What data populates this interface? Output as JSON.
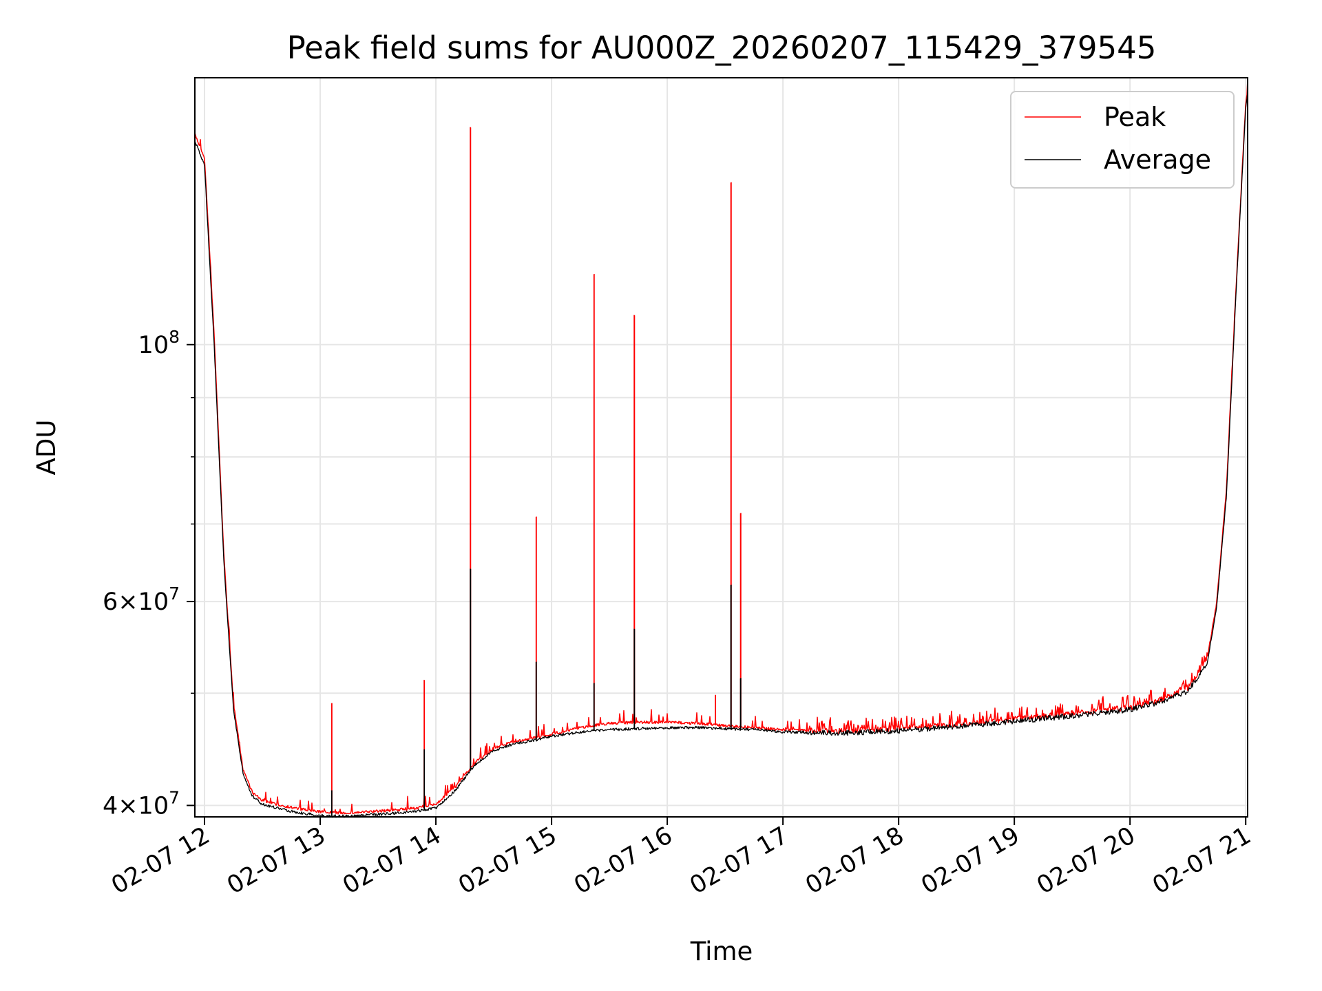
{
  "chart_data": {
    "type": "line",
    "title": "Peak field sums for AU000Z_20260207_115429_379545",
    "xlabel": "Time",
    "ylabel": "ADU",
    "x_axis": {
      "type": "time",
      "range": [
        "2026-02-07 11:55",
        "2026-02-07 21:01"
      ],
      "tick_values": [
        "2026-02-07 12:00",
        "2026-02-07 13:00",
        "2026-02-07 14:00",
        "2026-02-07 15:00",
        "2026-02-07 16:00",
        "2026-02-07 17:00",
        "2026-02-07 18:00",
        "2026-02-07 19:00",
        "2026-02-07 20:00",
        "2026-02-07 21:00"
      ],
      "tick_labels": [
        "02-07 12",
        "02-07 13",
        "02-07 14",
        "02-07 15",
        "02-07 16",
        "02-07 17",
        "02-07 18",
        "02-07 19",
        "02-07 20",
        "02-07 21"
      ]
    },
    "y_axis": {
      "scale": "log",
      "ylim": [
        39100000,
        170000000
      ],
      "major_ticks": [
        {
          "value": 40000000,
          "mantissa": "4",
          "exponent": "7"
        },
        {
          "value": 60000000,
          "mantissa": "6",
          "exponent": "7"
        },
        {
          "value": 100000000,
          "mantissa": "",
          "exponent": "8"
        }
      ],
      "minor_ticks": [
        50000000,
        70000000,
        80000000,
        90000000
      ]
    },
    "grid": true,
    "legend": {
      "placement": "top-right"
    },
    "series": [
      {
        "name": "Peak",
        "color": "#ff0000",
        "x": [
          "2026-02-07 11:55",
          "2026-02-07 12:00",
          "2026-02-07 12:05",
          "2026-02-07 12:10",
          "2026-02-07 12:15",
          "2026-02-07 12:20",
          "2026-02-07 12:25",
          "2026-02-07 12:30",
          "2026-02-07 12:40",
          "2026-02-07 12:50",
          "2026-02-07 13:00",
          "2026-02-07 13:10",
          "2026-02-07 13:20",
          "2026-02-07 13:30",
          "2026-02-07 13:40",
          "2026-02-07 13:50",
          "2026-02-07 14:00",
          "2026-02-07 14:10",
          "2026-02-07 14:20",
          "2026-02-07 14:30",
          "2026-02-07 14:40",
          "2026-02-07 14:50",
          "2026-02-07 15:00",
          "2026-02-07 15:15",
          "2026-02-07 15:30",
          "2026-02-07 15:45",
          "2026-02-07 16:00",
          "2026-02-07 16:15",
          "2026-02-07 16:30",
          "2026-02-07 16:45",
          "2026-02-07 17:00",
          "2026-02-07 17:30",
          "2026-02-07 18:00",
          "2026-02-07 18:30",
          "2026-02-07 19:00",
          "2026-02-07 19:30",
          "2026-02-07 20:00",
          "2026-02-07 20:15",
          "2026-02-07 20:30",
          "2026-02-07 20:40",
          "2026-02-07 20:45",
          "2026-02-07 20:50",
          "2026-02-07 20:55",
          "2026-02-07 21:00",
          "2026-02-07 21:01"
        ],
        "y": [
          152000000,
          145000000,
          102000000,
          66000000,
          49000000,
          43000000,
          41000000,
          40400000,
          40000000,
          39700000,
          39500000,
          39400000,
          39450000,
          39550000,
          39650000,
          39800000,
          40100000,
          41500000,
          43500000,
          44800000,
          45400000,
          45700000,
          46100000,
          46700000,
          47100000,
          47200000,
          47200000,
          47100000,
          46900000,
          46700000,
          46500000,
          46400000,
          46600000,
          47000000,
          47500000,
          48000000,
          48600000,
          49300000,
          50500000,
          53500000,
          60000000,
          75000000,
          112000000,
          162000000,
          166000000
        ],
        "spikes": [
          {
            "x": "2026-02-07 13:06",
            "y": 49000000
          },
          {
            "x": "2026-02-07 13:54",
            "y": 51300000
          },
          {
            "x": "2026-02-07 14:18",
            "y": 154000000
          },
          {
            "x": "2026-02-07 14:52",
            "y": 71000000
          },
          {
            "x": "2026-02-07 15:22",
            "y": 115000000
          },
          {
            "x": "2026-02-07 15:43",
            "y": 106000000
          },
          {
            "x": "2026-02-07 16:25",
            "y": 49800000
          },
          {
            "x": "2026-02-07 16:33",
            "y": 138000000
          },
          {
            "x": "2026-02-07 16:38",
            "y": 71500000
          }
        ]
      },
      {
        "name": "Average",
        "color": "#000000",
        "x": [
          "2026-02-07 11:55",
          "2026-02-07 12:00",
          "2026-02-07 12:05",
          "2026-02-07 12:10",
          "2026-02-07 12:15",
          "2026-02-07 12:20",
          "2026-02-07 12:25",
          "2026-02-07 12:30",
          "2026-02-07 12:40",
          "2026-02-07 12:50",
          "2026-02-07 13:00",
          "2026-02-07 13:10",
          "2026-02-07 13:20",
          "2026-02-07 13:30",
          "2026-02-07 13:40",
          "2026-02-07 13:50",
          "2026-02-07 14:00",
          "2026-02-07 14:10",
          "2026-02-07 14:20",
          "2026-02-07 14:30",
          "2026-02-07 14:40",
          "2026-02-07 14:50",
          "2026-02-07 15:00",
          "2026-02-07 15:15",
          "2026-02-07 15:30",
          "2026-02-07 15:45",
          "2026-02-07 16:00",
          "2026-02-07 16:15",
          "2026-02-07 16:30",
          "2026-02-07 16:45",
          "2026-02-07 17:00",
          "2026-02-07 17:30",
          "2026-02-07 18:00",
          "2026-02-07 18:30",
          "2026-02-07 19:00",
          "2026-02-07 19:30",
          "2026-02-07 20:00",
          "2026-02-07 20:15",
          "2026-02-07 20:30",
          "2026-02-07 20:40",
          "2026-02-07 20:45",
          "2026-02-07 20:50",
          "2026-02-07 20:55",
          "2026-02-07 21:00",
          "2026-02-07 21:01"
        ],
        "y": [
          150000000,
          143000000,
          100000000,
          65000000,
          48500000,
          42600000,
          40700000,
          40100000,
          39700000,
          39400000,
          39200000,
          39150000,
          39200000,
          39300000,
          39400000,
          39550000,
          39800000,
          41200000,
          43300000,
          44600000,
          45200000,
          45500000,
          45900000,
          46300000,
          46500000,
          46600000,
          46700000,
          46700000,
          46600000,
          46500000,
          46300000,
          46200000,
          46400000,
          46800000,
          47300000,
          47800000,
          48400000,
          49100000,
          50200000,
          53000000,
          59500000,
          74000000,
          111000000,
          160000000,
          165000000
        ],
        "spikes": [
          {
            "x": "2026-02-07 13:06",
            "y": 41200000
          },
          {
            "x": "2026-02-07 13:54",
            "y": 44700000
          },
          {
            "x": "2026-02-07 14:18",
            "y": 64000000
          },
          {
            "x": "2026-02-07 14:52",
            "y": 53200000
          },
          {
            "x": "2026-02-07 15:22",
            "y": 51000000
          },
          {
            "x": "2026-02-07 15:43",
            "y": 56800000
          },
          {
            "x": "2026-02-07 16:33",
            "y": 62000000
          },
          {
            "x": "2026-02-07 16:38",
            "y": 51500000
          }
        ]
      }
    ]
  }
}
